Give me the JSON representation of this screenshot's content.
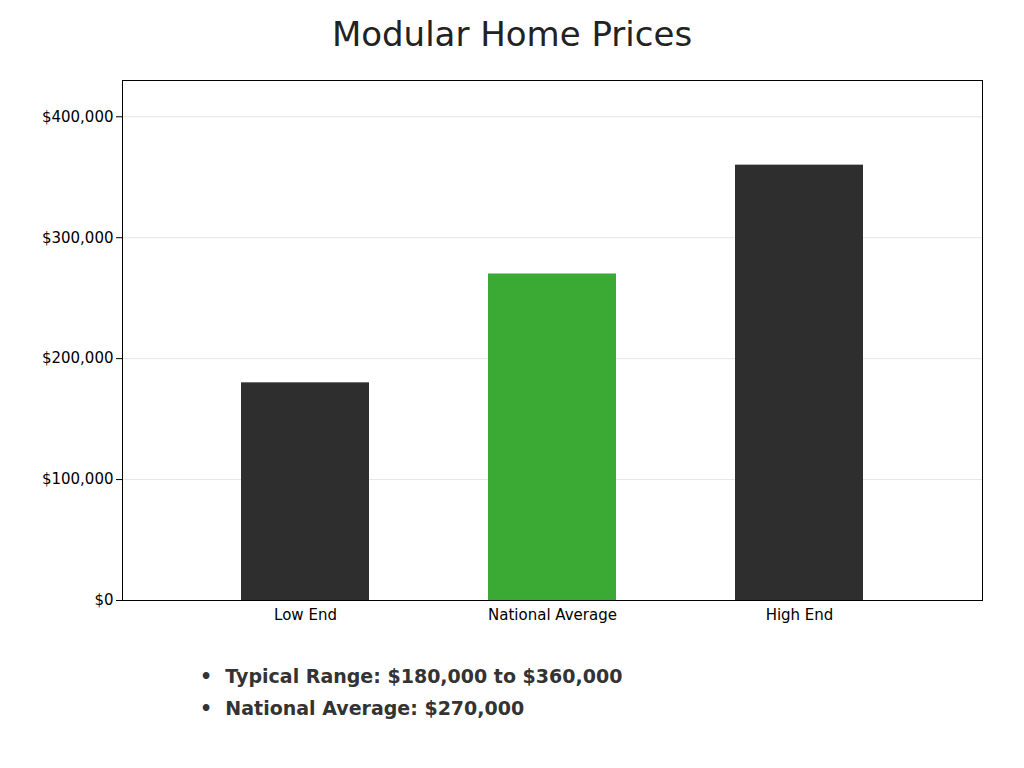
{
  "chart_data": {
    "type": "bar",
    "title": "Modular Home Prices",
    "categories": [
      "Low End",
      "National Average",
      "High End"
    ],
    "values": [
      180000,
      270000,
      360000
    ],
    "colors": [
      "#2e2e2e",
      "#3aaa35",
      "#2e2e2e"
    ],
    "ylim": [
      0,
      430000
    ],
    "yticks": [
      {
        "value": 0,
        "label": "$0"
      },
      {
        "value": 100000,
        "label": "$100,000"
      },
      {
        "value": 200000,
        "label": "$200,000"
      },
      {
        "value": 300000,
        "label": "$300,000"
      },
      {
        "value": 400000,
        "label": "$400,000"
      }
    ],
    "grid": true,
    "annotations": [
      "•  Typical Range: $180,000 to $360,000",
      "•  National Average: $270,000"
    ]
  }
}
